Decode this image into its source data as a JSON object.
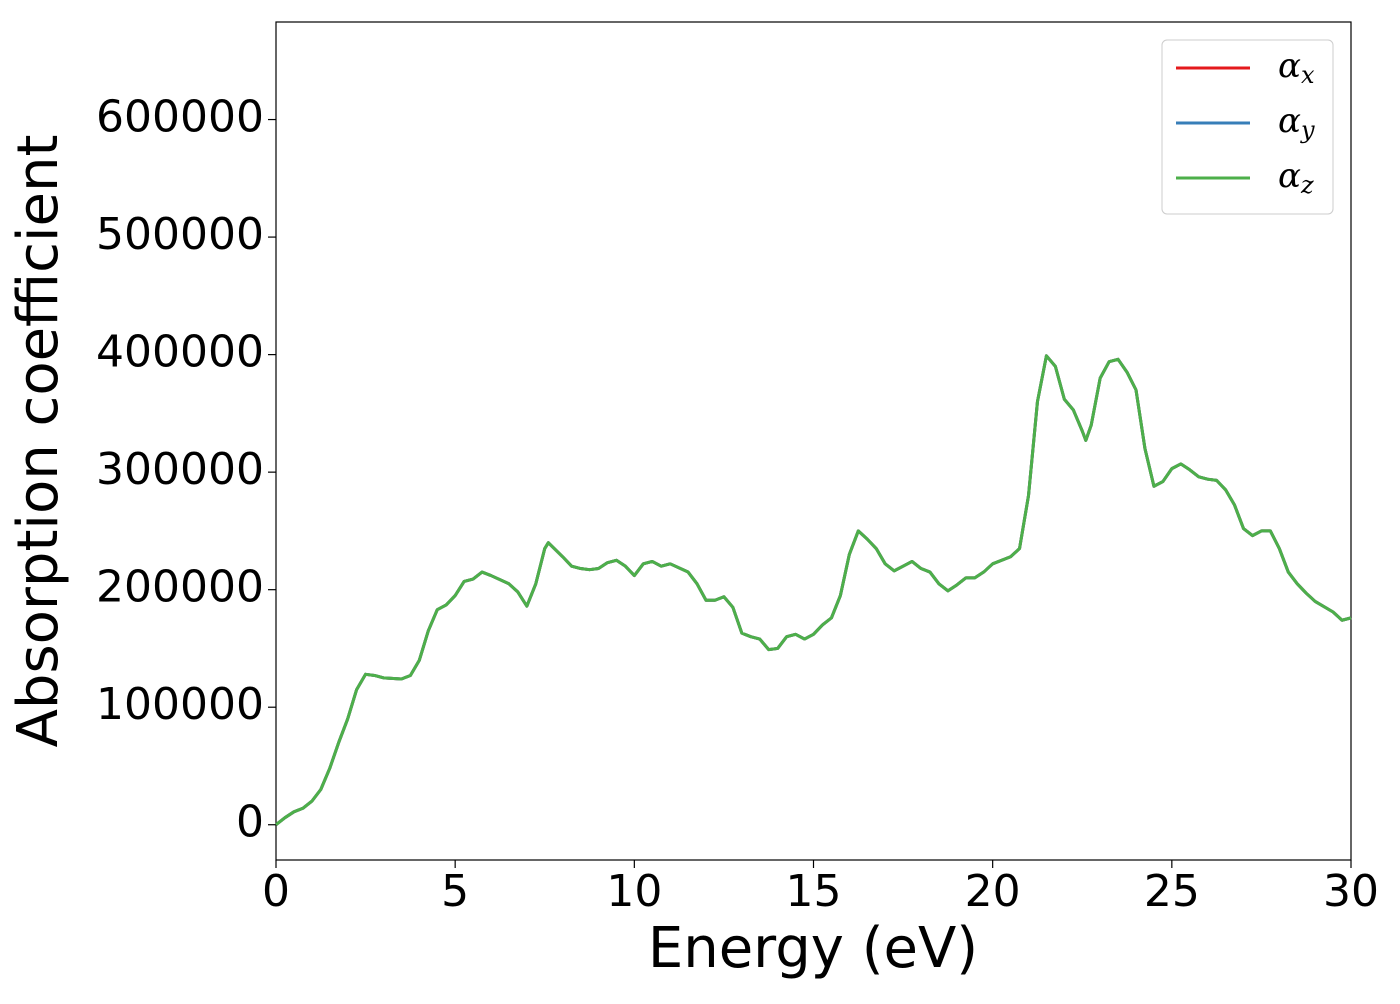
{
  "chart_data": {
    "type": "line",
    "xlabel": "Energy (eV)",
    "ylabel": "Absorption coefficient",
    "x": [
      0,
      0.25,
      0.5,
      0.75,
      1,
      1.25,
      1.5,
      1.75,
      2,
      2.25,
      2.5,
      2.75,
      3,
      3.5,
      3.75,
      4,
      4.25,
      4.5,
      4.75,
      5,
      5.25,
      5.5,
      5.75,
      6,
      6.5,
      6.75,
      7,
      7.25,
      7.5,
      7.6,
      8,
      8.25,
      8.5,
      8.75,
      9,
      9.25,
      9.5,
      9.75,
      10,
      10.25,
      10.5,
      10.75,
      11,
      11.5,
      11.75,
      12,
      12.25,
      12.5,
      12.75,
      13,
      13.25,
      13.5,
      13.75,
      14,
      14.25,
      14.5,
      14.75,
      15,
      15.25,
      15.5,
      15.75,
      16,
      16.25,
      16.5,
      16.75,
      17,
      17.25,
      17.5,
      17.75,
      18,
      18.25,
      18.5,
      18.75,
      19,
      19.25,
      19.5,
      19.75,
      20,
      20.5,
      20.75,
      21,
      21.25,
      21.5,
      21.75,
      22,
      22.25,
      22.5,
      22.6,
      22.75,
      23,
      23.25,
      23.5,
      23.75,
      24,
      24.25,
      24.5,
      24.75,
      25,
      25.25,
      25.5,
      25.75,
      26,
      26.25,
      26.5,
      26.75,
      27,
      27.25,
      27.5,
      27.75,
      28,
      28.25,
      28.5,
      28.75,
      29,
      29.5,
      29.75,
      30
    ],
    "series": [
      {
        "name": "αx",
        "color": "#e41a1c",
        "values": [
          0,
          6000,
          11000,
          14000,
          20000,
          30000,
          48000,
          70000,
          90000,
          115000,
          128000,
          127000,
          125000,
          124000,
          127000,
          140000,
          165000,
          183000,
          187000,
          195000,
          207000,
          209000,
          215000,
          212000,
          205000,
          198000,
          186000,
          205000,
          235000,
          240000,
          228000,
          220000,
          218000,
          217000,
          218000,
          223000,
          225000,
          220000,
          212000,
          222000,
          224000,
          220000,
          222000,
          215000,
          205000,
          191000,
          191000,
          194000,
          185000,
          163000,
          160000,
          158000,
          149000,
          150000,
          160000,
          162000,
          158000,
          162000,
          170000,
          176000,
          195000,
          230000,
          250000,
          243000,
          235000,
          222000,
          216000,
          220000,
          224000,
          218000,
          215000,
          205000,
          199000,
          204000,
          210000,
          210000,
          215000,
          222000,
          228000,
          235000,
          280000,
          360000,
          399000,
          390000,
          362000,
          353000,
          335000,
          327000,
          340000,
          380000,
          394000,
          396000,
          385000,
          370000,
          320000,
          288000,
          292000,
          303000,
          307000,
          302000,
          296000,
          294000,
          293000,
          285000,
          272000,
          252000,
          246000,
          250000,
          250000,
          235000,
          215000,
          205000,
          197000,
          190000,
          181000,
          174000,
          176000
        ]
      },
      {
        "name": "αy",
        "color": "#377eb8",
        "values": [
          0,
          6000,
          11000,
          14000,
          20000,
          30000,
          48000,
          70000,
          90000,
          115000,
          128000,
          127000,
          125000,
          124000,
          127000,
          140000,
          165000,
          183000,
          187000,
          195000,
          207000,
          209000,
          215000,
          212000,
          205000,
          198000,
          186000,
          205000,
          235000,
          240000,
          228000,
          220000,
          218000,
          217000,
          218000,
          223000,
          225000,
          220000,
          212000,
          222000,
          224000,
          220000,
          222000,
          215000,
          205000,
          191000,
          191000,
          194000,
          185000,
          163000,
          160000,
          158000,
          149000,
          150000,
          160000,
          162000,
          158000,
          162000,
          170000,
          176000,
          195000,
          230000,
          250000,
          243000,
          235000,
          222000,
          216000,
          220000,
          224000,
          218000,
          215000,
          205000,
          199000,
          204000,
          210000,
          210000,
          215000,
          222000,
          228000,
          235000,
          280000,
          360000,
          399000,
          390000,
          362000,
          353000,
          335000,
          327000,
          340000,
          380000,
          394000,
          396000,
          385000,
          370000,
          320000,
          288000,
          292000,
          303000,
          307000,
          302000,
          296000,
          294000,
          293000,
          285000,
          272000,
          252000,
          246000,
          250000,
          250000,
          235000,
          215000,
          205000,
          197000,
          190000,
          181000,
          174000,
          176000
        ]
      },
      {
        "name": "αz",
        "color": "#4daf4a",
        "values": [
          0,
          6000,
          11000,
          14000,
          20000,
          30000,
          48000,
          70000,
          90000,
          115000,
          128000,
          127000,
          125000,
          124000,
          127000,
          140000,
          165000,
          183000,
          187000,
          195000,
          207000,
          209000,
          215000,
          212000,
          205000,
          198000,
          186000,
          205000,
          235000,
          240000,
          228000,
          220000,
          218000,
          217000,
          218000,
          223000,
          225000,
          220000,
          212000,
          222000,
          224000,
          220000,
          222000,
          215000,
          205000,
          191000,
          191000,
          194000,
          185000,
          163000,
          160000,
          158000,
          149000,
          150000,
          160000,
          162000,
          158000,
          162000,
          170000,
          176000,
          195000,
          230000,
          250000,
          243000,
          235000,
          222000,
          216000,
          220000,
          224000,
          218000,
          215000,
          205000,
          199000,
          204000,
          210000,
          210000,
          215000,
          222000,
          228000,
          235000,
          280000,
          360000,
          399000,
          390000,
          362000,
          353000,
          335000,
          327000,
          340000,
          380000,
          394000,
          396000,
          385000,
          370000,
          320000,
          288000,
          292000,
          303000,
          307000,
          302000,
          296000,
          294000,
          293000,
          285000,
          272000,
          252000,
          246000,
          250000,
          250000,
          235000,
          215000,
          205000,
          197000,
          190000,
          181000,
          174000,
          176000
        ]
      }
    ],
    "xlim": [
      0,
      30
    ],
    "xticks": [
      0,
      5,
      10,
      15,
      20,
      25,
      30
    ],
    "ylim": [
      -30000,
      683000
    ],
    "yticks": [
      0,
      100000,
      200000,
      300000,
      400000,
      500000,
      600000
    ],
    "grid": false,
    "legend": "upper right"
  }
}
